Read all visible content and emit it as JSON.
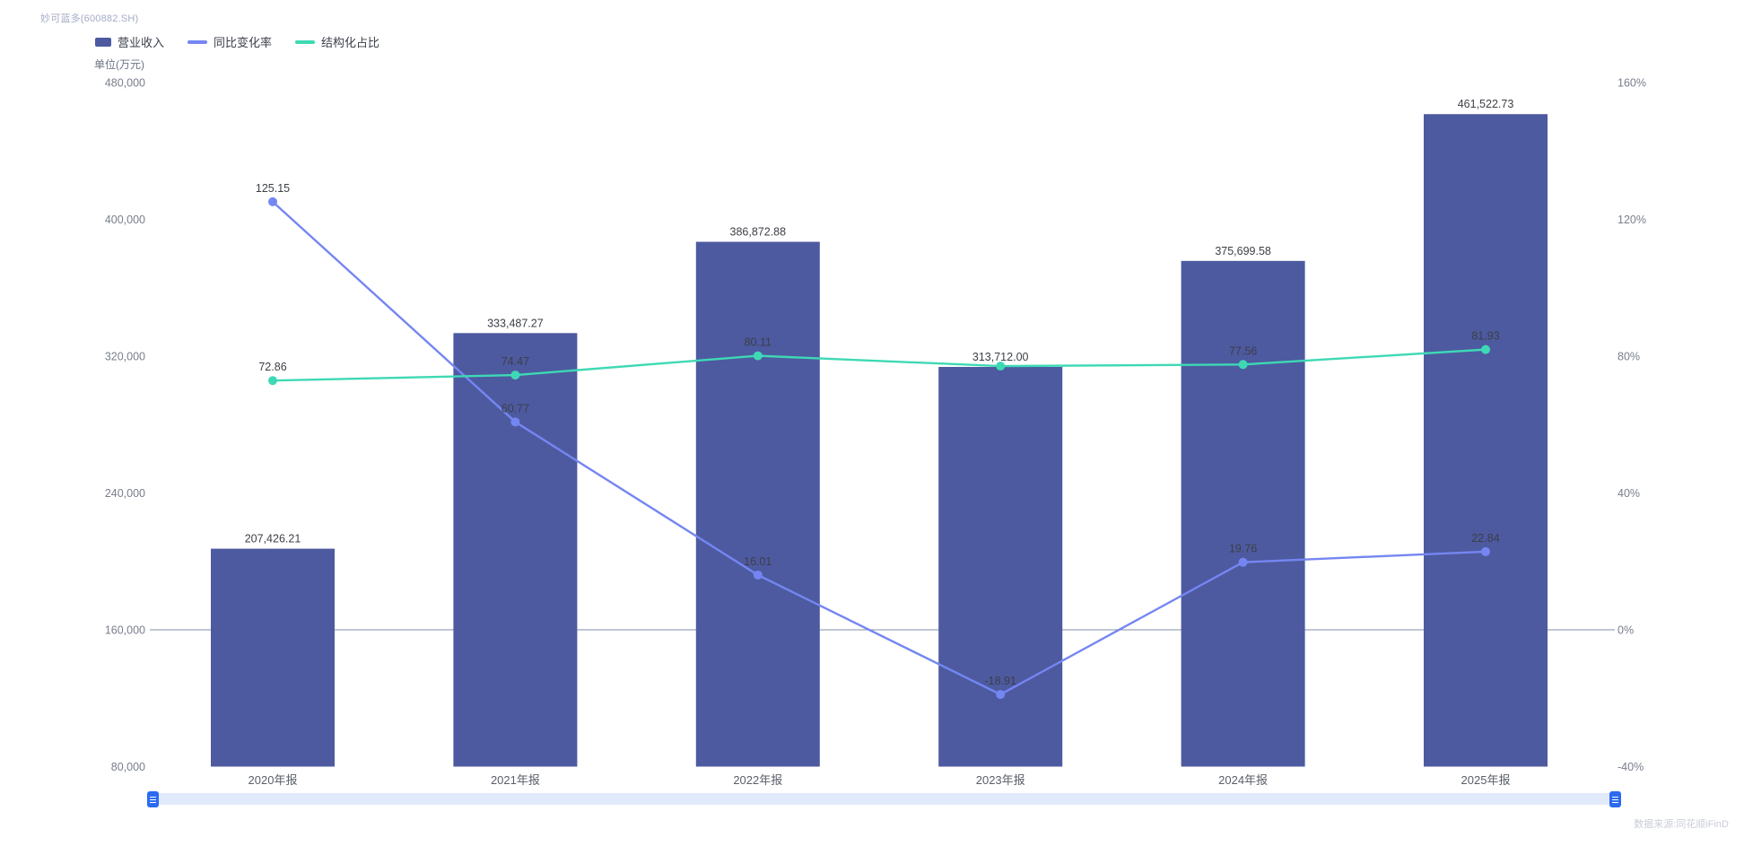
{
  "header": {
    "title": "妙可蓝多(600882.SH)",
    "unit_label": "单位(万元)"
  },
  "legend": {
    "items": [
      {
        "label": "营业收入",
        "type": "bar",
        "color": "#4d5aa0"
      },
      {
        "label": "同比变化率",
        "type": "line",
        "color": "#7586f2"
      },
      {
        "label": "结构化占比",
        "type": "line",
        "color": "#3ed9b4"
      }
    ]
  },
  "footer": {
    "source_label": "数据来源:同花顺iFinD"
  },
  "chart_data": {
    "type": "combo-bar-line",
    "title": "妙可蓝多(600882.SH)",
    "unit": "万元",
    "categories": [
      "2020年报",
      "2021年报",
      "2022年报",
      "2023年报",
      "2024年报",
      "2025年报"
    ],
    "series": [
      {
        "name": "营业收入",
        "type": "bar",
        "axis": "left",
        "unit": "万元",
        "color": "#4d5aa0",
        "values": [
          207426.21,
          333487.27,
          386872.88,
          313712.0,
          375699.58,
          461522.73
        ],
        "labels": [
          "207,426.21",
          "333,487.27",
          "386,872.88",
          "313,712.00",
          "375,699.58",
          "461,522.73"
        ]
      },
      {
        "name": "同比变化率",
        "type": "line",
        "axis": "right",
        "unit": "%",
        "color": "#7586f2",
        "values": [
          125.15,
          60.77,
          16.01,
          -18.91,
          19.76,
          22.84
        ],
        "labels": [
          "125.15",
          "60.77",
          "16.01",
          "-18.91",
          "19.76",
          "22.84"
        ]
      },
      {
        "name": "结构化占比",
        "type": "line",
        "axis": "right",
        "unit": "%",
        "color": "#3ed9b4",
        "values": [
          72.86,
          74.47,
          80.11,
          77.1,
          77.56,
          81.93
        ],
        "labels": [
          "72.86",
          "74.47",
          "80.11",
          null,
          "77.56",
          "81.93"
        ]
      }
    ],
    "y_left": {
      "title": "单位(万元)",
      "min": 80000,
      "max": 480000,
      "ticks": [
        {
          "label": "480,000",
          "value": 480000
        },
        {
          "label": "400,000",
          "value": 400000
        },
        {
          "label": "320,000",
          "value": 320000
        },
        {
          "label": "240,000",
          "value": 240000
        },
        {
          "label": "160,000",
          "value": 160000
        },
        {
          "label": "80,000",
          "value": 80000
        }
      ]
    },
    "y_right": {
      "min": -40,
      "max": 160,
      "ticks": [
        {
          "label": "160%",
          "value": 160
        },
        {
          "label": "120%",
          "value": 120
        },
        {
          "label": "80%",
          "value": 80
        },
        {
          "label": "40%",
          "value": 40
        },
        {
          "label": "0%",
          "value": 0
        },
        {
          "label": "-40%",
          "value": -40
        }
      ]
    },
    "grid_lines": "zero-line-only",
    "legend_position": "top-left",
    "colors": {
      "zero_line": "#828caa",
      "axis_tick_text": "#787e8c",
      "category_text": "#5a5f69",
      "value_label_text": "#3c3f46"
    }
  },
  "data_zoom": {
    "enabled": true,
    "range": "full"
  }
}
